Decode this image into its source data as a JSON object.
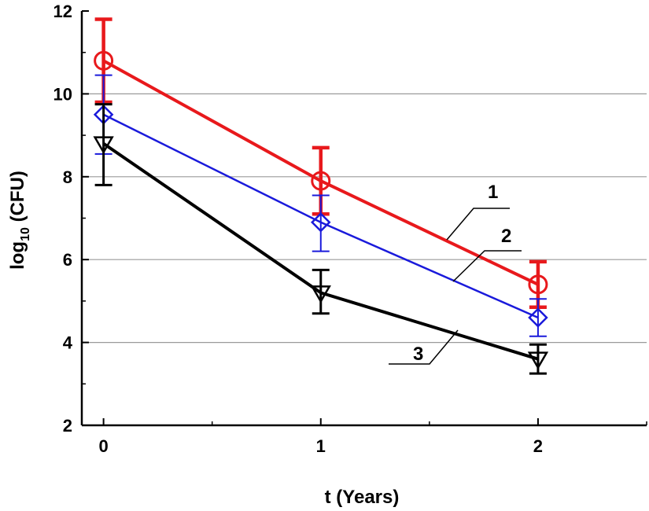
{
  "chart_data": {
    "type": "line",
    "title": "",
    "xlabel": "t (Years)",
    "ylabel": {
      "main": "log",
      "sub": "10",
      "rest": " (CFU)"
    },
    "x": [
      0,
      1,
      2
    ],
    "xlim": [
      -0.1,
      2.5
    ],
    "ylim": [
      2,
      12
    ],
    "xticks": [
      "0",
      "1",
      "2"
    ],
    "yticks": [
      "2",
      "4",
      "6",
      "8",
      "10",
      "12"
    ],
    "grid": true,
    "series": [
      {
        "name": "1",
        "color": "#e8191c",
        "marker": "circle",
        "values": [
          10.8,
          7.9,
          5.4
        ],
        "err_low": [
          9.8,
          7.1,
          4.85
        ],
        "err_high": [
          11.8,
          8.7,
          5.95
        ]
      },
      {
        "name": "2",
        "color": "#1a1adb",
        "marker": "diamond",
        "values": [
          9.5,
          6.9,
          4.6
        ],
        "err_low": [
          8.55,
          6.2,
          4.15
        ],
        "err_high": [
          10.45,
          7.55,
          5.05
        ]
      },
      {
        "name": "3",
        "color": "#000000",
        "marker": "triangle-down",
        "values": [
          8.8,
          5.2,
          3.6
        ],
        "err_low": [
          7.8,
          4.7,
          3.25
        ],
        "err_high": [
          9.75,
          5.75,
          3.95
        ]
      }
    ]
  }
}
